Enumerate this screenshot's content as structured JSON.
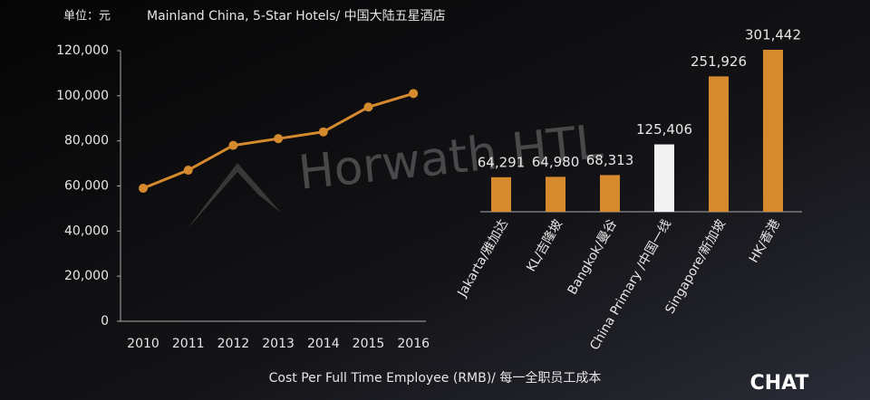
{
  "chart_data": [
    {
      "type": "line",
      "title": "Mainland China, 5-Star Hotels/ 中国大陆五星酒店",
      "ylabel": "单位：元",
      "categories": [
        "2010",
        "2011",
        "2012",
        "2013",
        "2014",
        "2015",
        "2016"
      ],
      "values": [
        59000,
        67000,
        78000,
        81000,
        84000,
        95000,
        101000
      ],
      "color": "#d68a2e",
      "ylim": [
        0,
        120000
      ],
      "yticks": [
        0,
        {
          "value": 20000,
          "label": "20,000"
        },
        {
          "value": 40000,
          "label": "40,000"
        },
        {
          "value": 60000,
          "label": "60,000"
        },
        {
          "value": 80000,
          "label": "80,000"
        },
        {
          "value": 100000,
          "label": "100,000"
        },
        {
          "value": 120000,
          "label": "120,000"
        }
      ]
    },
    {
      "type": "bar",
      "categories": [
        "Jakarta/雅加达",
        "KL/吉隆坡",
        "Bangkok/曼谷",
        "China Primary /中国一线",
        "Singapore/新加坡",
        "HK/香港"
      ],
      "values": [
        64291,
        64980,
        68313,
        125406,
        251926,
        301442
      ],
      "value_labels": [
        "64,291",
        "64,980",
        "68,313",
        "125,406",
        "251,926",
        "301,442"
      ],
      "colors": [
        "#d68a2e",
        "#d68a2e",
        "#d68a2e",
        "#f2f2f2",
        "#d68a2e",
        "#d68a2e"
      ]
    }
  ],
  "caption": "Cost Per Full Time Employee (RMB)/ 每一全职员工成本",
  "watermark": "Horwath HTL",
  "logo": "CHAT"
}
